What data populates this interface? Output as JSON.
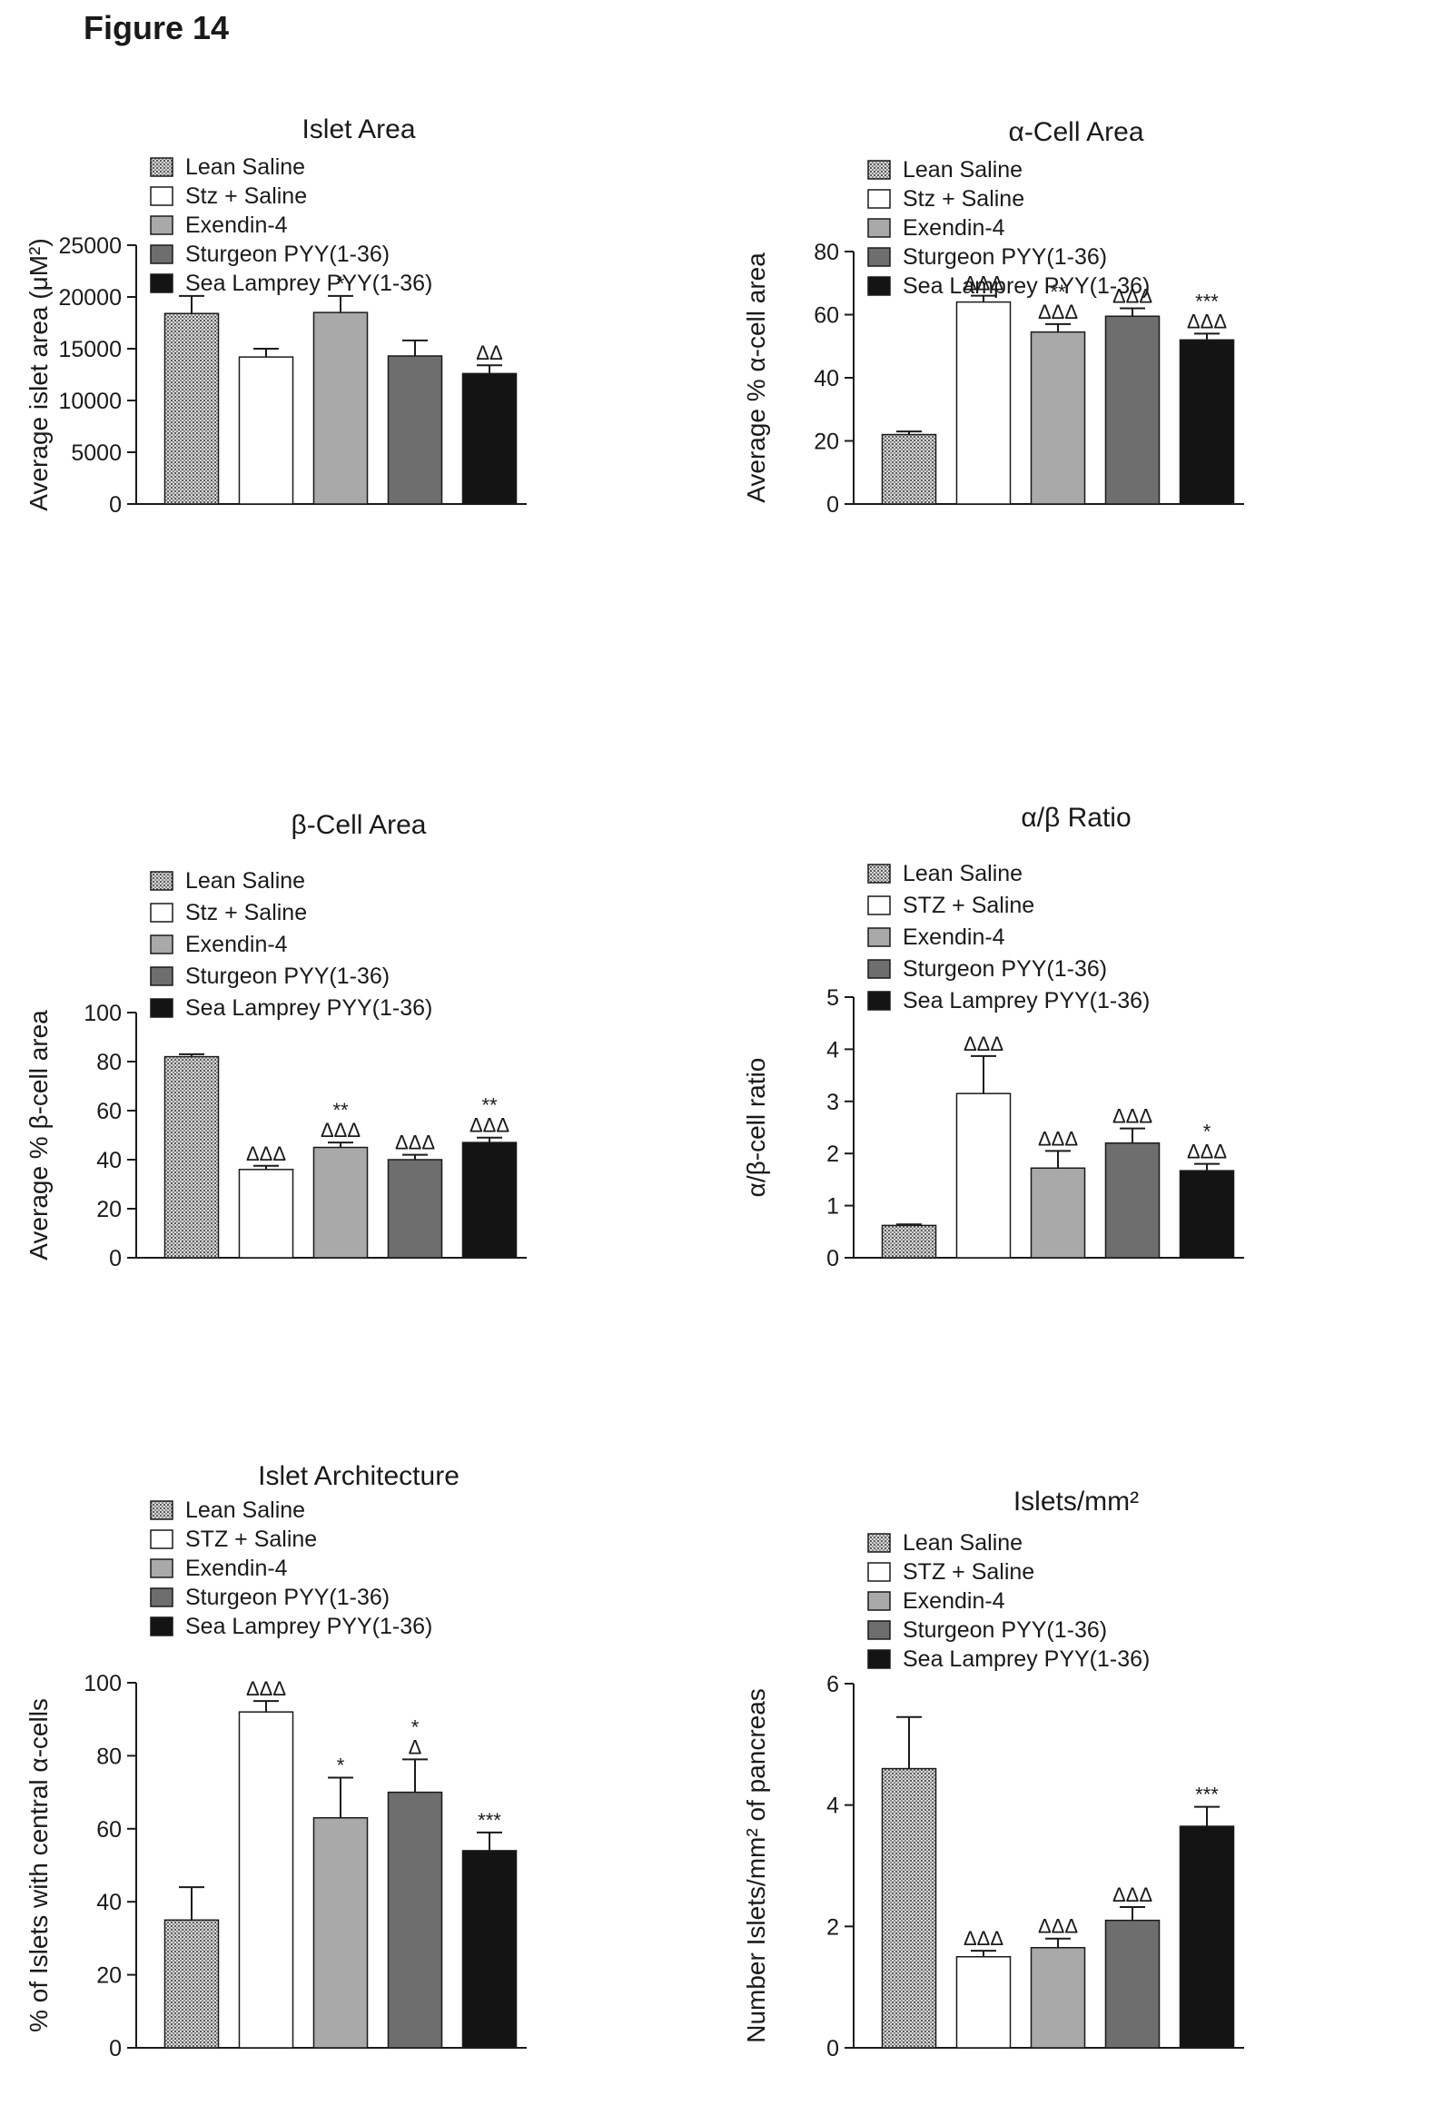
{
  "figure": {
    "title": "Figure 14"
  },
  "colors": {
    "axis": "#1a1a1a",
    "outline": "#1a1a1a"
  },
  "chart_data": [
    {
      "id": "islet-area",
      "type": "bar",
      "title": "Islet Area",
      "ylabel": "Average islet area (μM²)",
      "ylim": [
        0,
        25000
      ],
      "yticks": [
        0,
        5000,
        10000,
        15000,
        20000,
        25000
      ],
      "legend_placement": "top-left",
      "categories": [
        "Lean Saline",
        "Stz + Saline",
        "Exendin-4",
        "Sturgeon PYY(1-36)",
        "Sea Lamprey PYY(1-36)"
      ],
      "fills": [
        "pattern-lean",
        "white",
        "#a9a9a9",
        "#6e6e6e",
        "#141414"
      ],
      "values": [
        18400,
        14200,
        18500,
        14300,
        12600
      ],
      "errors": [
        1700,
        800,
        1600,
        1500,
        800
      ],
      "annotations": [
        [],
        [],
        [
          "*"
        ],
        [],
        [
          "ΔΔ"
        ]
      ]
    },
    {
      "id": "alpha-cell-area",
      "type": "bar",
      "title": "α-Cell Area",
      "ylabel": "Average % α-cell area",
      "ylim": [
        0,
        80
      ],
      "yticks": [
        0,
        20,
        40,
        60,
        80
      ],
      "legend_placement": "top-left",
      "categories": [
        "Lean Saline",
        "Stz + Saline",
        "Exendin-4",
        "Sturgeon PYY(1-36)",
        "Sea Lamprey PYY(1-36)"
      ],
      "fills": [
        "pattern-lean",
        "white",
        "#a9a9a9",
        "#6e6e6e",
        "#141414"
      ],
      "values": [
        22,
        64,
        54.5,
        59.5,
        52
      ],
      "errors": [
        1,
        2,
        2.5,
        2.5,
        2
      ],
      "annotations": [
        [],
        [
          "ΔΔΔ"
        ],
        [
          "**",
          "ΔΔΔ"
        ],
        [
          "ΔΔΔ"
        ],
        [
          "***",
          "ΔΔΔ"
        ]
      ]
    },
    {
      "id": "beta-cell-area",
      "type": "bar",
      "title": "β-Cell Area",
      "ylabel": "Average % β-cell area",
      "ylim": [
        0,
        100
      ],
      "yticks": [
        0,
        20,
        40,
        60,
        80,
        100
      ],
      "legend_placement": "top-left",
      "categories": [
        "Lean Saline",
        "Stz + Saline",
        "Exendin-4",
        "Sturgeon PYY(1-36)",
        "Sea Lamprey PYY(1-36)"
      ],
      "fills": [
        "pattern-lean",
        "white",
        "#a9a9a9",
        "#6e6e6e",
        "#141414"
      ],
      "values": [
        82,
        36,
        45,
        40,
        47
      ],
      "errors": [
        1,
        1.5,
        2,
        2,
        2
      ],
      "annotations": [
        [],
        [
          "ΔΔΔ"
        ],
        [
          "**",
          "ΔΔΔ"
        ],
        [
          "ΔΔΔ"
        ],
        [
          "**",
          "ΔΔΔ"
        ]
      ]
    },
    {
      "id": "alpha-beta-ratio",
      "type": "bar",
      "title": "α/β Ratio",
      "ylabel": "α/β-cell ratio",
      "ylim": [
        0,
        5
      ],
      "yticks": [
        0,
        1,
        2,
        3,
        4,
        5
      ],
      "legend_placement": "top-left",
      "categories": [
        "Lean Saline",
        "STZ + Saline",
        "Exendin-4",
        "Sturgeon PYY(1-36)",
        "Sea Lamprey PYY(1-36)"
      ],
      "fills": [
        "pattern-lean",
        "white",
        "#a9a9a9",
        "#6e6e6e",
        "#141414"
      ],
      "values": [
        0.62,
        3.15,
        1.72,
        2.2,
        1.67
      ],
      "errors": [
        0.02,
        0.72,
        0.33,
        0.28,
        0.13
      ],
      "annotations": [
        [],
        [
          "ΔΔΔ"
        ],
        [
          "ΔΔΔ"
        ],
        [
          "ΔΔΔ"
        ],
        [
          "*",
          "ΔΔΔ"
        ]
      ]
    },
    {
      "id": "islet-architecture",
      "type": "bar",
      "title": "Islet Architecture",
      "ylabel": "% of Islets with central α-cells",
      "ylim": [
        0,
        100
      ],
      "yticks": [
        0,
        20,
        40,
        60,
        80,
        100
      ],
      "ymin_tick": 0,
      "legend_placement": "top-left",
      "categories": [
        "Lean Saline",
        "STZ + Saline",
        "Exendin-4",
        "Sturgeon PYY(1-36)",
        "Sea Lamprey PYY(1-36)"
      ],
      "fills": [
        "pattern-lean",
        "white",
        "#a9a9a9",
        "#6e6e6e",
        "#141414"
      ],
      "values": [
        35,
        92,
        63,
        70,
        54
      ],
      "errors": [
        9,
        3,
        11,
        9,
        5
      ],
      "annotations": [
        [],
        [
          "ΔΔΔ"
        ],
        [
          "*"
        ],
        [
          "*",
          "Δ"
        ],
        [
          "***"
        ]
      ]
    },
    {
      "id": "islets-per-mm2",
      "type": "bar",
      "title": "Islets/mm²",
      "ylabel": "Number Islets/mm² of pancreas",
      "ylim": [
        0,
        6
      ],
      "yticks": [
        0,
        2,
        4,
        6
      ],
      "legend_placement": "top-left",
      "categories": [
        "Lean Saline",
        "STZ + Saline",
        "Exendin-4",
        "Sturgeon PYY(1-36)",
        "Sea Lamprey PYY(1-36)"
      ],
      "fills": [
        "pattern-lean",
        "white",
        "#a9a9a9",
        "#6e6e6e",
        "#141414"
      ],
      "values": [
        4.6,
        1.5,
        1.65,
        2.1,
        3.65
      ],
      "errors": [
        0.85,
        0.1,
        0.15,
        0.22,
        0.32
      ],
      "annotations": [
        [],
        [
          "ΔΔΔ"
        ],
        [
          "ΔΔΔ"
        ],
        [
          "ΔΔΔ"
        ],
        [
          "***"
        ]
      ]
    }
  ]
}
